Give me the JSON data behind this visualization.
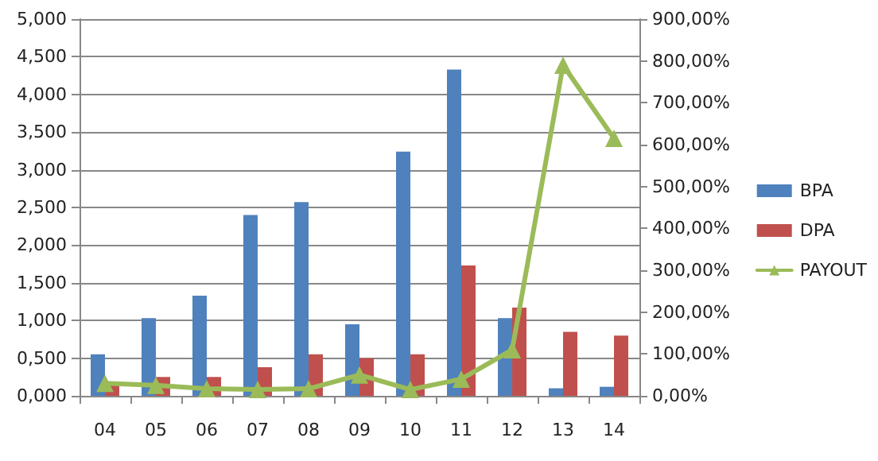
{
  "chart_data": {
    "type": "bar",
    "categories": [
      "04",
      "05",
      "06",
      "07",
      "08",
      "09",
      "10",
      "11",
      "12",
      "13",
      "14"
    ],
    "series": [
      {
        "name": "BPA",
        "color": "#4f81bd",
        "values": [
          0.55,
          1.03,
          1.33,
          2.4,
          2.57,
          0.95,
          3.24,
          4.33,
          1.03,
          0.1,
          0.12
        ]
      },
      {
        "name": "DPA",
        "color": "#c0504d",
        "values": [
          0.15,
          0.25,
          0.25,
          0.38,
          0.55,
          0.5,
          0.55,
          1.73,
          1.17,
          0.85,
          0.8
        ]
      },
      {
        "name": "PAYOUT",
        "type": "line",
        "axis": "y2",
        "color": "#9bbb59",
        "marker": "triangle",
        "values": [
          30,
          25,
          17,
          15,
          17,
          50,
          15,
          40,
          110,
          790,
          615
        ]
      }
    ],
    "ylim": [
      0,
      5
    ],
    "yticks": [
      {
        "value": 0,
        "label": "0,000"
      },
      {
        "value": 0.5,
        "label": "0,500"
      },
      {
        "value": 1,
        "label": "1,000"
      },
      {
        "value": 1.5,
        "label": "1,500"
      },
      {
        "value": 2,
        "label": "2,000"
      },
      {
        "value": 2.5,
        "label": "2,500"
      },
      {
        "value": 3,
        "label": "3,000"
      },
      {
        "value": 3.5,
        "label": "3,500"
      },
      {
        "value": 4,
        "label": "4,000"
      },
      {
        "value": 4.5,
        "label": "4,500"
      },
      {
        "value": 5,
        "label": "5,000"
      }
    ],
    "y2lim": [
      0,
      900
    ],
    "y2ticks": [
      {
        "value": 0,
        "label": "0,00%"
      },
      {
        "value": 100,
        "label": "100,00%"
      },
      {
        "value": 200,
        "label": "200,00%"
      },
      {
        "value": 300,
        "label": "300,00%"
      },
      {
        "value": 400,
        "label": "400,00%"
      },
      {
        "value": 500,
        "label": "500,00%"
      },
      {
        "value": 600,
        "label": "600,00%"
      },
      {
        "value": 700,
        "label": "700,00%"
      },
      {
        "value": 800,
        "label": "800,00%"
      },
      {
        "value": 900,
        "label": "900,00%"
      }
    ],
    "grid": "y",
    "legend": "right"
  }
}
